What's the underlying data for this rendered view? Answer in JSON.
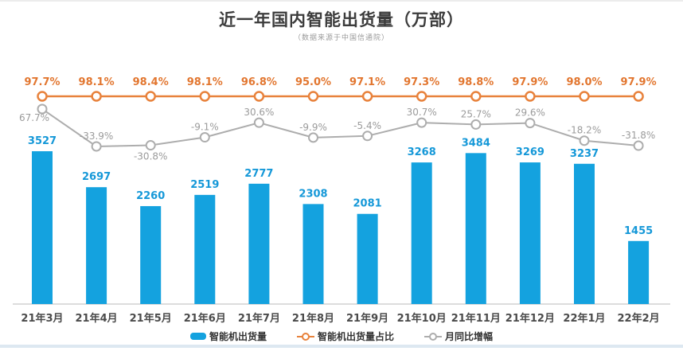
{
  "chart_data": {
    "type": "bar",
    "title": "近一年国内智能出货量（万部）",
    "subtitle": "（数据来源于中国信通院）",
    "categories": [
      "21年3月",
      "21年4月",
      "21年5月",
      "21年6月",
      "21年7月",
      "21年8月",
      "21年9月",
      "21年10月",
      "21年11月",
      "21年12月",
      "22年1月",
      "22年2月"
    ],
    "series": [
      {
        "name": "智能机出货量",
        "type": "bar",
        "color": "#14a2df",
        "values": [
          3527,
          2697,
          2260,
          2519,
          2777,
          2308,
          2081,
          3268,
          3484,
          3269,
          3237,
          1455
        ]
      },
      {
        "name": "智能机出货量占比",
        "type": "line",
        "color": "#e8823c",
        "unit": "%",
        "values": [
          97.7,
          98.1,
          98.4,
          98.1,
          96.8,
          95.0,
          97.1,
          97.3,
          98.8,
          97.9,
          98.0,
          97.9
        ]
      },
      {
        "name": "月同比增幅",
        "type": "line",
        "color": "#adadad",
        "unit": "%",
        "values": [
          67.7,
          -33.9,
          -30.8,
          -9.1,
          30.6,
          -9.9,
          -5.4,
          30.7,
          25.7,
          29.6,
          -18.2,
          -31.8
        ]
      }
    ],
    "ylabel": "",
    "xlabel": "",
    "grid": false,
    "legend_position": "bottom"
  }
}
